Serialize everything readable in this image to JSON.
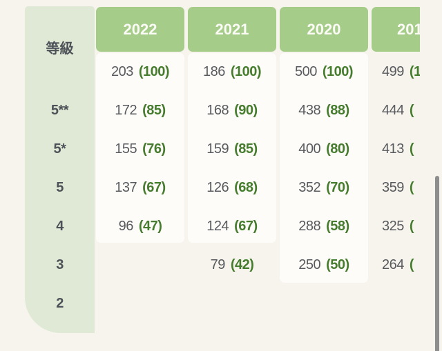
{
  "colors": {
    "page_background": "#f6f4ed",
    "grade_column_background": "#dfe9d5",
    "year_header_background": "#a6cc8a",
    "year_header_text": "#fbfbf5",
    "cell_card_background": "#fdfcf8",
    "count_text": "#585a5e",
    "percent_text": "#467c2e",
    "grade_label_text": "#4d5258",
    "scrollbar_thumb": "#8d8d8d"
  },
  "grade_column": {
    "header": "等級",
    "labels": [
      "5**",
      "5*",
      "5",
      "4",
      "3",
      "2"
    ]
  },
  "years": [
    {
      "label": "2022",
      "cells": [
        {
          "n": "203",
          "p": "(100)"
        },
        {
          "n": "172",
          "p": "(85)"
        },
        {
          "n": "155",
          "p": "(76)"
        },
        {
          "n": "137",
          "p": "(67)"
        },
        {
          "n": "96",
          "p": "(47)"
        },
        null
      ]
    },
    {
      "label": "2021",
      "cells": [
        {
          "n": "186",
          "p": "(100)"
        },
        {
          "n": "168",
          "p": "(90)"
        },
        {
          "n": "159",
          "p": "(85)"
        },
        {
          "n": "126",
          "p": "(68)"
        },
        {
          "n": "124",
          "p": "(67)"
        },
        {
          "n": "79",
          "p": "(42)"
        }
      ]
    },
    {
      "label": "2020",
      "cells": [
        {
          "n": "500",
          "p": "(100)"
        },
        {
          "n": "438",
          "p": "(88)"
        },
        {
          "n": "400",
          "p": "(80)"
        },
        {
          "n": "352",
          "p": "(70)"
        },
        {
          "n": "288",
          "p": "(58)"
        },
        {
          "n": "250",
          "p": "(50)"
        }
      ]
    },
    {
      "label": "201",
      "cells": [
        {
          "n": "499",
          "p": "(1"
        },
        {
          "n": "444",
          "p": "("
        },
        {
          "n": "413",
          "p": "("
        },
        {
          "n": "359",
          "p": "("
        },
        {
          "n": "325",
          "p": "("
        },
        {
          "n": "264",
          "p": "("
        }
      ]
    }
  ]
}
